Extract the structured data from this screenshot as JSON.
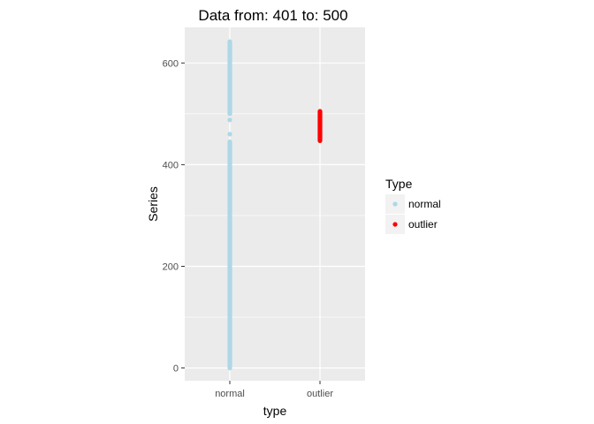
{
  "chart_data": {
    "type": "scatter",
    "title": "Data from:  401  to:  500",
    "xlabel": "type",
    "ylabel": "Series",
    "categories": [
      "normal",
      "outlier"
    ],
    "y_ticks": [
      0,
      200,
      400,
      600
    ],
    "y_tick_labels": [
      "0",
      "200",
      "400",
      "600"
    ],
    "ylim": [
      -25,
      670
    ],
    "grid": true,
    "legend": {
      "title": "Type",
      "position": "right",
      "entries": [
        {
          "label": "normal",
          "color": "#ADD8E6"
        },
        {
          "label": "outlier",
          "color": "#FF0000"
        }
      ]
    },
    "series": [
      {
        "name": "normal",
        "color": "#ADD8E6",
        "category": "normal",
        "ranges": [
          [
            0,
            445
          ],
          [
            500,
            642
          ]
        ],
        "values": [
          460,
          488
        ]
      },
      {
        "name": "outlier",
        "color": "#FF0000",
        "category": "outlier",
        "ranges": [
          [
            447,
            505
          ]
        ],
        "values": []
      }
    ]
  }
}
